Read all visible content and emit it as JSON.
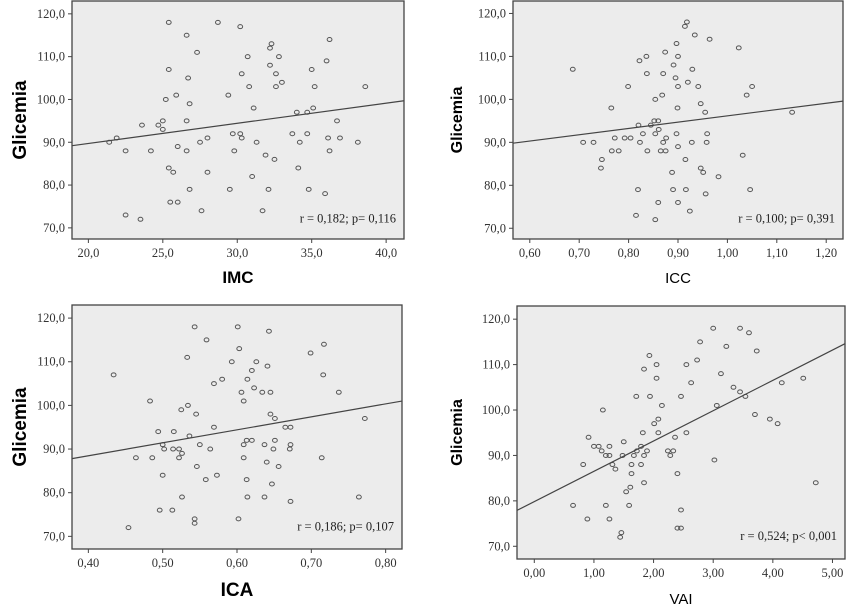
{
  "chart_data": [
    {
      "type": "scatter",
      "xlabel": "IMC",
      "ylabel": "Glicemia",
      "xlim": [
        18.9,
        41.2
      ],
      "ylim": [
        67.4,
        123
      ],
      "xticks": [
        20,
        25,
        30,
        35,
        40
      ],
      "xtick_labels": [
        "20,0",
        "25,0",
        "30,0",
        "35,0",
        "40,0"
      ],
      "yticks": [
        70,
        80,
        90,
        100,
        110,
        120
      ],
      "ytick_labels": [
        "70,0",
        "80,0",
        "90,0",
        "100,0",
        "110,0",
        "120,0"
      ],
      "annotation": "r = 0,182; p= 0,116",
      "fit_line": {
        "x": [
          18.9,
          41.2
        ],
        "y": [
          89.2,
          99.7
        ]
      },
      "grid": false,
      "points": [
        [
          25.4,
          118
        ],
        [
          28.7,
          118
        ],
        [
          30.2,
          117
        ],
        [
          26.6,
          115
        ],
        [
          36.2,
          114
        ],
        [
          32.3,
          113
        ],
        [
          32.2,
          112
        ],
        [
          27.3,
          111
        ],
        [
          30.7,
          110
        ],
        [
          32.8,
          110
        ],
        [
          36.0,
          109
        ],
        [
          32.2,
          108
        ],
        [
          25.4,
          107
        ],
        [
          35.0,
          107
        ],
        [
          30.3,
          106
        ],
        [
          32.6,
          106
        ],
        [
          26.7,
          105
        ],
        [
          33.0,
          104
        ],
        [
          30.8,
          103
        ],
        [
          32.6,
          103
        ],
        [
          35.2,
          103
        ],
        [
          38.6,
          103
        ],
        [
          25.9,
          101
        ],
        [
          29.4,
          101
        ],
        [
          25.2,
          100
        ],
        [
          26.8,
          99
        ],
        [
          31.1,
          98
        ],
        [
          35.1,
          98
        ],
        [
          34.0,
          97
        ],
        [
          34.7,
          97
        ],
        [
          25.0,
          95
        ],
        [
          26.6,
          95
        ],
        [
          36.7,
          95
        ],
        [
          23.6,
          94
        ],
        [
          24.7,
          94
        ],
        [
          25.0,
          93
        ],
        [
          29.7,
          92
        ],
        [
          30.2,
          92
        ],
        [
          33.7,
          92
        ],
        [
          34.7,
          92
        ],
        [
          21.9,
          91
        ],
        [
          28.0,
          91
        ],
        [
          30.3,
          91
        ],
        [
          36.1,
          91
        ],
        [
          36.9,
          91
        ],
        [
          21.4,
          90
        ],
        [
          27.5,
          90
        ],
        [
          31.3,
          90
        ],
        [
          34.2,
          90
        ],
        [
          38.1,
          90
        ],
        [
          26.0,
          89
        ],
        [
          22.5,
          88
        ],
        [
          24.2,
          88
        ],
        [
          26.6,
          88
        ],
        [
          29.8,
          88
        ],
        [
          36.2,
          88
        ],
        [
          31.9,
          87
        ],
        [
          32.5,
          86
        ],
        [
          25.4,
          84
        ],
        [
          34.1,
          84
        ],
        [
          25.7,
          83
        ],
        [
          28.0,
          83
        ],
        [
          31.0,
          82
        ],
        [
          26.8,
          79
        ],
        [
          29.5,
          79
        ],
        [
          32.1,
          79
        ],
        [
          34.8,
          79
        ],
        [
          35.9,
          78
        ],
        [
          25.5,
          76
        ],
        [
          26.0,
          76
        ],
        [
          27.6,
          74
        ],
        [
          31.7,
          74
        ],
        [
          22.5,
          73
        ],
        [
          23.5,
          72
        ]
      ]
    },
    {
      "type": "scatter",
      "xlabel": "ICC",
      "ylabel": "Glicemia",
      "xlim": [
        0.566,
        1.234
      ],
      "ylim": [
        67.5,
        122.9
      ],
      "xticks": [
        0.6,
        0.7,
        0.8,
        0.9,
        1.0,
        1.1,
        1.2
      ],
      "xtick_labels": [
        "0,60",
        "0,70",
        "0,80",
        "0,90",
        "1,00",
        "1,10",
        "1,20"
      ],
      "yticks": [
        70,
        80,
        90,
        100,
        110,
        120
      ],
      "ytick_labels": [
        "70,0",
        "80,0",
        "90,0",
        "100,0",
        "110,0",
        "120,0"
      ],
      "annotation": "r = 0,100; p= 0,391",
      "fit_line": {
        "x": [
          0.566,
          1.234
        ],
        "y": [
          89.8,
          99.6
        ]
      },
      "grid": false,
      "points": [
        [
          0.918,
          118
        ],
        [
          0.914,
          117
        ],
        [
          0.934,
          115
        ],
        [
          0.964,
          114
        ],
        [
          0.897,
          113
        ],
        [
          1.023,
          112
        ],
        [
          0.874,
          111
        ],
        [
          0.836,
          110
        ],
        [
          0.9,
          110
        ],
        [
          0.822,
          109
        ],
        [
          0.891,
          108
        ],
        [
          0.687,
          107
        ],
        [
          0.929,
          107
        ],
        [
          0.837,
          106
        ],
        [
          0.87,
          106
        ],
        [
          0.895,
          105
        ],
        [
          0.92,
          104
        ],
        [
          0.799,
          103
        ],
        [
          0.9,
          103
        ],
        [
          0.941,
          103
        ],
        [
          1.05,
          103
        ],
        [
          0.868,
          101
        ],
        [
          1.039,
          101
        ],
        [
          0.854,
          100
        ],
        [
          0.946,
          99
        ],
        [
          0.765,
          98
        ],
        [
          0.899,
          98
        ],
        [
          0.955,
          97
        ],
        [
          1.131,
          97
        ],
        [
          0.852,
          95
        ],
        [
          0.86,
          95
        ],
        [
          0.82,
          94
        ],
        [
          0.845,
          94
        ],
        [
          0.861,
          93
        ],
        [
          0.829,
          92
        ],
        [
          0.854,
          92
        ],
        [
          0.897,
          92
        ],
        [
          0.959,
          92
        ],
        [
          0.772,
          91
        ],
        [
          0.792,
          91
        ],
        [
          0.804,
          91
        ],
        [
          0.876,
          91
        ],
        [
          0.708,
          90
        ],
        [
          0.729,
          90
        ],
        [
          0.823,
          90
        ],
        [
          0.87,
          90
        ],
        [
          0.928,
          90
        ],
        [
          0.958,
          90
        ],
        [
          0.9,
          89
        ],
        [
          0.766,
          88
        ],
        [
          0.78,
          88
        ],
        [
          0.838,
          88
        ],
        [
          0.865,
          88
        ],
        [
          0.875,
          88
        ],
        [
          1.031,
          87
        ],
        [
          0.746,
          86
        ],
        [
          0.915,
          86
        ],
        [
          0.744,
          84
        ],
        [
          0.946,
          84
        ],
        [
          0.888,
          83
        ],
        [
          0.951,
          83
        ],
        [
          0.982,
          82
        ],
        [
          0.819,
          79
        ],
        [
          0.89,
          79
        ],
        [
          0.916,
          79
        ],
        [
          1.046,
          79
        ],
        [
          0.956,
          78
        ],
        [
          0.86,
          76
        ],
        [
          0.9,
          76
        ],
        [
          0.924,
          74
        ],
        [
          0.815,
          73
        ],
        [
          0.854,
          72
        ]
      ]
    },
    {
      "type": "scatter",
      "xlabel": "ICA",
      "ylabel": "Glicemia",
      "xlim": [
        0.378,
        0.822
      ],
      "ylim": [
        67.1,
        123
      ],
      "xticks": [
        0.4,
        0.5,
        0.6,
        0.7,
        0.8
      ],
      "xtick_labels": [
        "0,40",
        "0,50",
        "0,60",
        "0,70",
        "0,80"
      ],
      "yticks": [
        70,
        80,
        90,
        100,
        110,
        120
      ],
      "ytick_labels": [
        "70,0",
        "80,0",
        "90,0",
        "100,0",
        "110,0",
        "120,0"
      ],
      "annotation": "r = 0,186; p= 0,107",
      "fit_line": {
        "x": [
          0.378,
          0.822
        ],
        "y": [
          87.8,
          101.0
        ]
      },
      "grid": false,
      "points": [
        [
          0.543,
          118
        ],
        [
          0.601,
          118
        ],
        [
          0.643,
          117
        ],
        [
          0.559,
          115
        ],
        [
          0.717,
          114
        ],
        [
          0.603,
          113
        ],
        [
          0.699,
          112
        ],
        [
          0.533,
          111
        ],
        [
          0.593,
          110
        ],
        [
          0.626,
          110
        ],
        [
          0.641,
          109
        ],
        [
          0.62,
          108
        ],
        [
          0.434,
          107
        ],
        [
          0.716,
          107
        ],
        [
          0.58,
          106
        ],
        [
          0.614,
          106
        ],
        [
          0.569,
          105
        ],
        [
          0.623,
          104
        ],
        [
          0.606,
          103
        ],
        [
          0.634,
          103
        ],
        [
          0.645,
          103
        ],
        [
          0.737,
          103
        ],
        [
          0.483,
          101
        ],
        [
          0.609,
          101
        ],
        [
          0.534,
          100
        ],
        [
          0.525,
          99
        ],
        [
          0.545,
          98
        ],
        [
          0.645,
          98
        ],
        [
          0.651,
          97
        ],
        [
          0.772,
          97
        ],
        [
          0.569,
          95
        ],
        [
          0.665,
          95
        ],
        [
          0.672,
          95
        ],
        [
          0.494,
          94
        ],
        [
          0.515,
          94
        ],
        [
          0.536,
          93
        ],
        [
          0.613,
          92
        ],
        [
          0.62,
          92
        ],
        [
          0.651,
          92
        ],
        [
          0.5,
          91
        ],
        [
          0.55,
          91
        ],
        [
          0.609,
          91
        ],
        [
          0.637,
          91
        ],
        [
          0.672,
          91
        ],
        [
          0.502,
          90
        ],
        [
          0.514,
          90
        ],
        [
          0.522,
          90
        ],
        [
          0.564,
          90
        ],
        [
          0.649,
          90
        ],
        [
          0.671,
          90
        ],
        [
          0.526,
          89
        ],
        [
          0.464,
          88
        ],
        [
          0.486,
          88
        ],
        [
          0.522,
          88
        ],
        [
          0.609,
          88
        ],
        [
          0.714,
          88
        ],
        [
          0.64,
          87
        ],
        [
          0.546,
          86
        ],
        [
          0.656,
          86
        ],
        [
          0.5,
          84
        ],
        [
          0.573,
          84
        ],
        [
          0.558,
          83
        ],
        [
          0.613,
          83
        ],
        [
          0.647,
          82
        ],
        [
          0.526,
          79
        ],
        [
          0.614,
          79
        ],
        [
          0.637,
          79
        ],
        [
          0.764,
          79
        ],
        [
          0.672,
          78
        ],
        [
          0.496,
          76
        ],
        [
          0.513,
          76
        ],
        [
          0.543,
          74
        ],
        [
          0.602,
          74
        ],
        [
          0.543,
          73
        ],
        [
          0.454,
          72
        ]
      ]
    },
    {
      "type": "scatter",
      "xlabel": "VAI",
      "ylabel": "Glicemia",
      "xlim": [
        -0.29,
        5.21
      ],
      "ylim": [
        67.2,
        122.9
      ],
      "xticks": [
        0,
        1,
        2,
        3,
        4,
        5
      ],
      "xtick_labels": [
        "0,00",
        "1,00",
        "2,00",
        "3,00",
        "4,00",
        "5,00"
      ],
      "yticks": [
        70,
        80,
        90,
        100,
        110,
        120
      ],
      "ytick_labels": [
        "70,0",
        "80,0",
        "90,0",
        "100,0",
        "110,0",
        "120,0"
      ],
      "annotation": "r = 0,524; p< 0,001",
      "fit_line": {
        "x": [
          -0.29,
          5.21
        ],
        "y": [
          77.9,
          114.6
        ]
      },
      "grid": false,
      "points": [
        [
          3.0,
          118
        ],
        [
          3.45,
          118
        ],
        [
          3.6,
          117
        ],
        [
          2.78,
          115
        ],
        [
          3.22,
          114
        ],
        [
          3.73,
          113
        ],
        [
          1.93,
          112
        ],
        [
          2.73,
          111
        ],
        [
          2.05,
          110
        ],
        [
          2.55,
          110
        ],
        [
          1.84,
          109
        ],
        [
          3.13,
          108
        ],
        [
          2.05,
          107
        ],
        [
          4.51,
          107
        ],
        [
          2.63,
          106
        ],
        [
          4.15,
          106
        ],
        [
          3.34,
          105
        ],
        [
          3.45,
          104
        ],
        [
          1.71,
          103
        ],
        [
          1.94,
          103
        ],
        [
          2.46,
          103
        ],
        [
          3.54,
          103
        ],
        [
          2.14,
          101
        ],
        [
          3.06,
          101
        ],
        [
          1.15,
          100
        ],
        [
          3.7,
          99
        ],
        [
          2.08,
          98
        ],
        [
          3.95,
          98
        ],
        [
          2.01,
          97
        ],
        [
          4.08,
          97
        ],
        [
          1.82,
          95
        ],
        [
          2.08,
          95
        ],
        [
          2.55,
          95
        ],
        [
          0.91,
          94
        ],
        [
          2.36,
          94
        ],
        [
          1.5,
          93
        ],
        [
          1.0,
          92
        ],
        [
          1.08,
          92
        ],
        [
          1.26,
          92
        ],
        [
          1.79,
          92
        ],
        [
          1.13,
          91
        ],
        [
          1.72,
          91
        ],
        [
          1.89,
          91
        ],
        [
          2.24,
          91
        ],
        [
          2.33,
          91
        ],
        [
          1.2,
          90
        ],
        [
          1.26,
          90
        ],
        [
          1.48,
          90
        ],
        [
          1.67,
          90
        ],
        [
          1.84,
          90
        ],
        [
          2.28,
          90
        ],
        [
          3.02,
          89
        ],
        [
          0.82,
          88
        ],
        [
          1.31,
          88
        ],
        [
          1.63,
          88
        ],
        [
          1.79,
          88
        ],
        [
          1.36,
          87
        ],
        [
          1.63,
          86
        ],
        [
          2.4,
          86
        ],
        [
          1.84,
          84
        ],
        [
          4.72,
          84
        ],
        [
          1.61,
          83
        ],
        [
          1.54,
          82
        ],
        [
          0.65,
          79
        ],
        [
          1.2,
          79
        ],
        [
          1.59,
          79
        ],
        [
          2.46,
          78
        ],
        [
          0.89,
          76
        ],
        [
          1.26,
          76
        ],
        [
          2.4,
          74
        ],
        [
          2.46,
          74
        ],
        [
          1.46,
          73
        ],
        [
          1.44,
          72
        ]
      ]
    }
  ]
}
